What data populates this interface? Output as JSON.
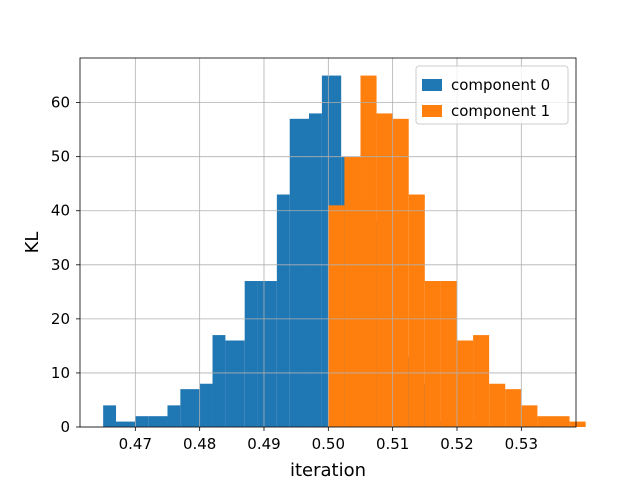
{
  "chart_data": {
    "type": "bar",
    "subtype": "histogram",
    "title": "",
    "xlabel": "iteration",
    "ylabel": "KL",
    "xlim": [
      0.4614,
      0.5385
    ],
    "ylim": [
      0,
      68.25
    ],
    "xticks": [
      0.47,
      0.48,
      0.49,
      0.5,
      0.51,
      0.52,
      0.53
    ],
    "yticks": [
      0,
      10,
      20,
      30,
      40,
      50,
      60
    ],
    "grid": true,
    "legend_position": "top-right",
    "series": [
      {
        "name": "component 0",
        "color": "#1f77b4",
        "bins": [
          [
            0.465,
            0.467,
            4
          ],
          [
            0.467,
            0.47,
            1
          ],
          [
            0.47,
            0.472,
            2
          ],
          [
            0.472,
            0.475,
            2
          ],
          [
            0.475,
            0.477,
            4
          ],
          [
            0.477,
            0.48,
            7
          ],
          [
            0.48,
            0.482,
            8
          ],
          [
            0.482,
            0.484,
            17
          ],
          [
            0.484,
            0.487,
            16
          ],
          [
            0.487,
            0.489,
            27
          ],
          [
            0.489,
            0.492,
            27
          ],
          [
            0.492,
            0.494,
            43
          ],
          [
            0.494,
            0.497,
            57
          ],
          [
            0.497,
            0.499,
            58
          ],
          [
            0.499,
            0.502,
            65
          ],
          [
            0.502,
            0.504,
            50
          ],
          [
            0.504,
            0.506,
            41
          ],
          [
            0.506,
            0.509,
            38
          ],
          [
            0.509,
            0.511,
            20
          ],
          [
            0.511,
            0.514,
            13
          ],
          [
            0.514,
            0.516,
            8
          ],
          [
            0.516,
            0.519,
            1
          ],
          [
            0.519,
            0.521,
            1
          ],
          [
            0.521,
            0.523,
            1
          ]
        ]
      },
      {
        "name": "component 1",
        "color": "#ff7f0e",
        "bins": [
          [
            0.5,
            0.5025,
            41
          ],
          [
            0.5025,
            0.505,
            50
          ],
          [
            0.505,
            0.5075,
            65
          ],
          [
            0.5075,
            0.51,
            58
          ],
          [
            0.51,
            0.5125,
            57
          ],
          [
            0.5125,
            0.515,
            43
          ],
          [
            0.515,
            0.5175,
            27
          ],
          [
            0.5175,
            0.52,
            27
          ],
          [
            0.52,
            0.5225,
            16
          ],
          [
            0.5225,
            0.525,
            17
          ],
          [
            0.525,
            0.5275,
            8
          ],
          [
            0.5275,
            0.53,
            7
          ],
          [
            0.53,
            0.5325,
            4
          ],
          [
            0.5325,
            0.535,
            2
          ],
          [
            0.535,
            0.5375,
            2
          ],
          [
            0.5375,
            0.54,
            1
          ]
        ]
      }
    ]
  }
}
